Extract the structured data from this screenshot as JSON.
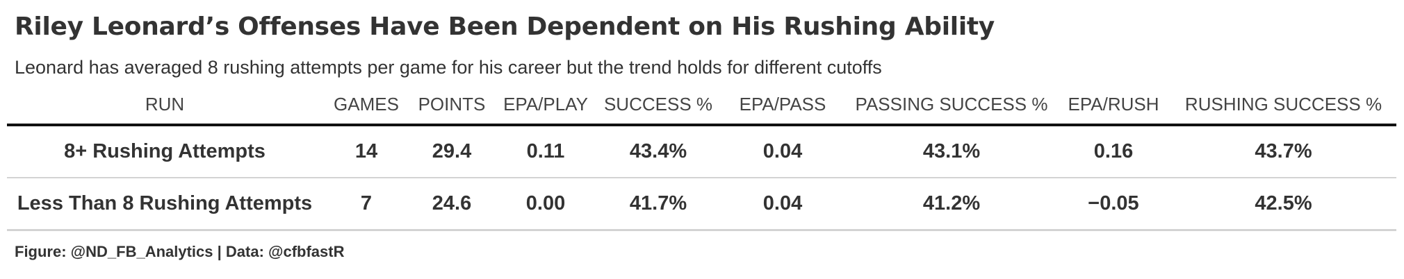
{
  "chart_data": {
    "type": "table",
    "title": "Riley Leonard’s Offenses Have Been Dependent on His Rushing Ability",
    "subtitle": "Leonard has averaged 8 rushing attempts per game for his career but the trend holds for different cutoffs",
    "columns": [
      "RUN",
      "GAMES",
      "POINTS",
      "EPA/PLAY",
      "SUCCESS %",
      "EPA/PASS",
      "PASSING SUCCESS %",
      "EPA/RUSH",
      "RUSHING SUCCESS %"
    ],
    "rows": [
      [
        "8+ Rushing Attempts",
        "14",
        "29.4",
        "0.11",
        "43.4%",
        "0.04",
        "43.1%",
        "0.16",
        "43.7%"
      ],
      [
        "Less Than 8 Rushing Attempts",
        "7",
        "24.6",
        "0.00",
        "41.7%",
        "0.04",
        "41.2%",
        "−0.05",
        "42.5%"
      ]
    ],
    "source": "Figure: @ND_FB_Analytics | Data: @cfbfastR"
  }
}
